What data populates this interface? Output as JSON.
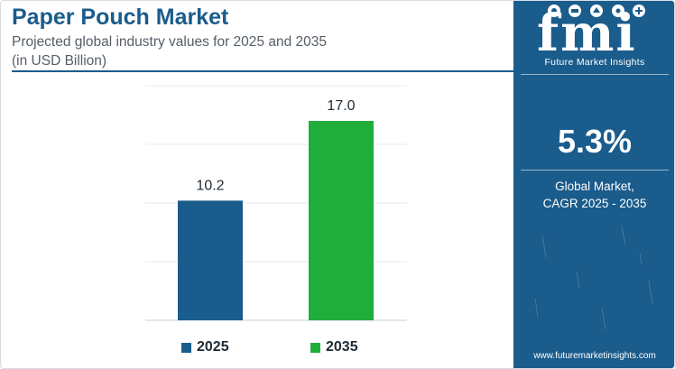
{
  "header": {
    "title": "Paper Pouch Market",
    "subtitle_line1": "Projected global industry values for 2025 and 2035",
    "subtitle_line2": "(in USD Billion)"
  },
  "chart_data": {
    "type": "bar",
    "title": "Paper Pouch Market",
    "subtitle": "Projected global industry values for 2025 and 2035 (in USD Billion)",
    "categories": [
      "2025",
      "2035"
    ],
    "values": [
      10.2,
      17.0
    ],
    "value_labels": [
      "10.2",
      "17.0"
    ],
    "colors": [
      "#1a5c8c",
      "#1fae3a"
    ],
    "xlabel": "",
    "ylabel": "",
    "ylim": [
      0,
      20
    ],
    "gridlines": [
      0,
      5,
      10,
      15,
      20
    ],
    "legend": [
      {
        "name": "2025",
        "color": "#1a5c8c"
      },
      {
        "name": "2035",
        "color": "#1fae3a"
      }
    ],
    "legend_position": "bottom"
  },
  "panel": {
    "logo_text": "fmi",
    "logo_subtitle": "Future Market Insights",
    "cagr_value": "5.3%",
    "cagr_label_line1": "Global Market,",
    "cagr_label_line2": "CAGR 2025 - 2035",
    "url": "www.futuremarketinsights.com",
    "background": "#1a5c8c"
  }
}
